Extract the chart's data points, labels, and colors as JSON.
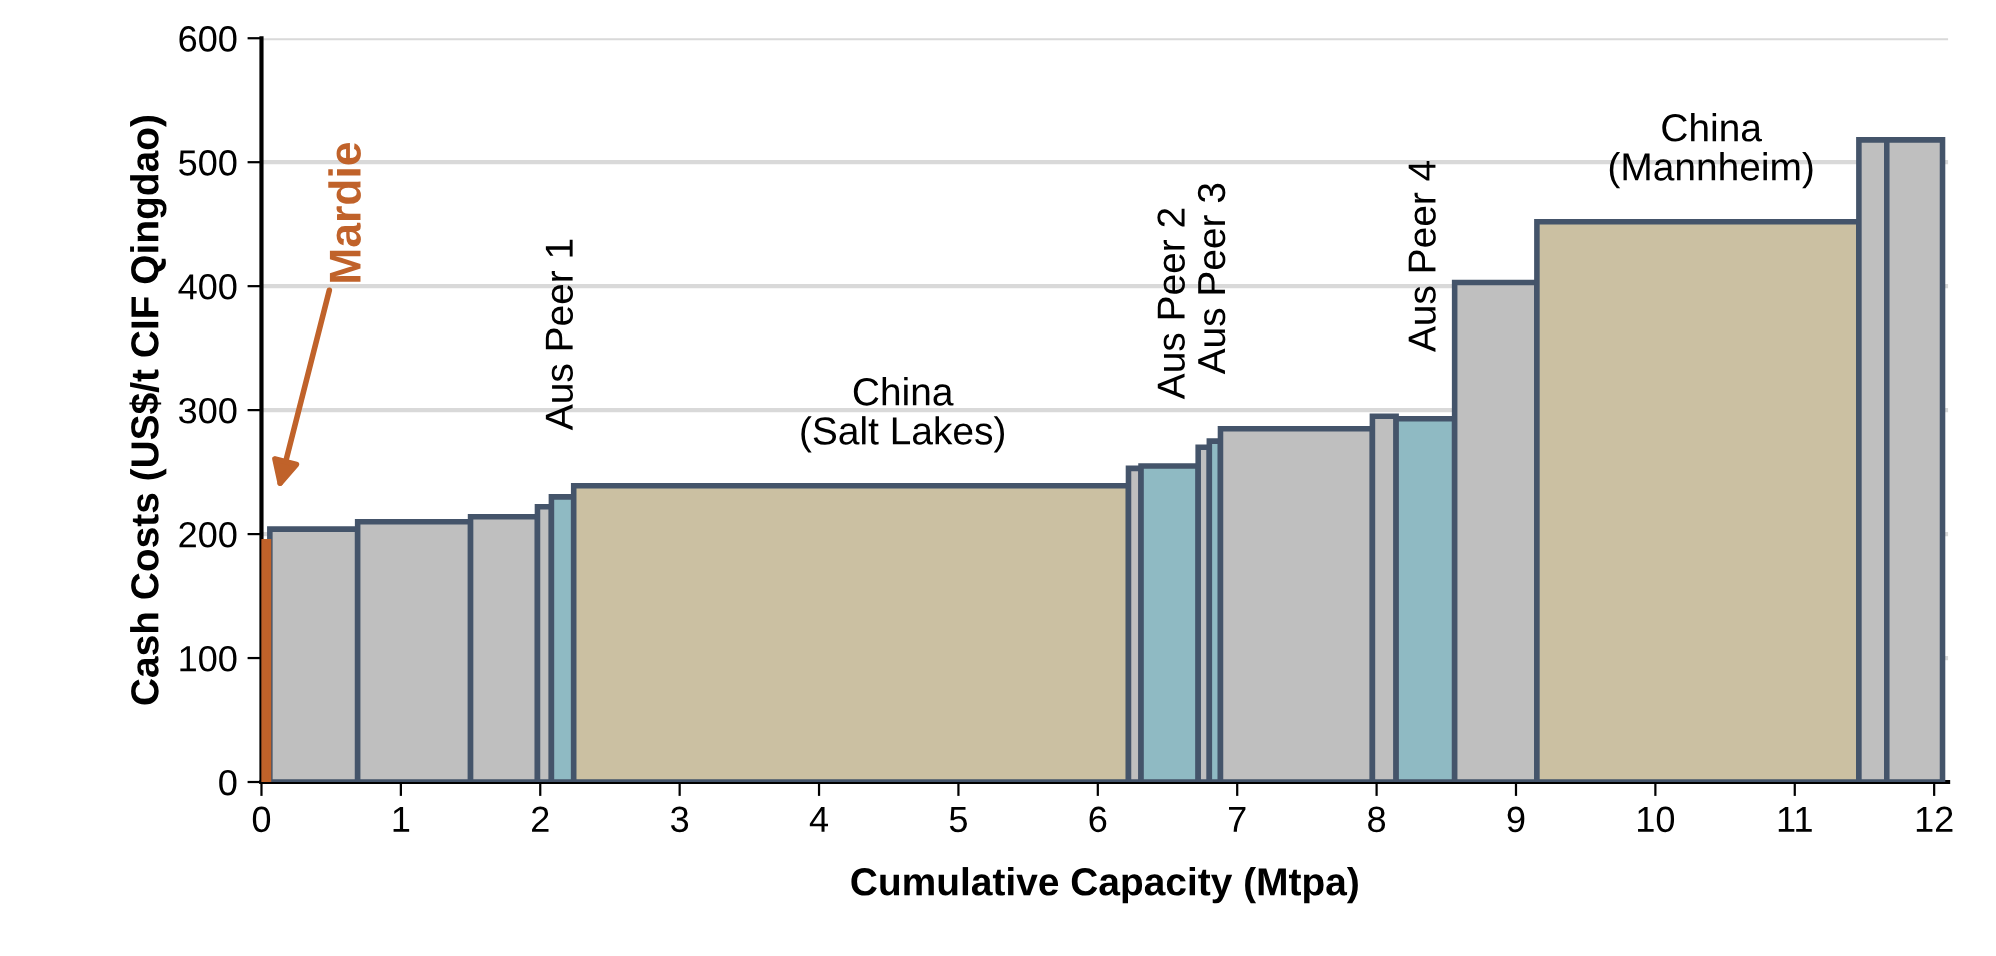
{
  "chart_data": {
    "type": "histogram",
    "xlabel": "Cumulative Capacity (Mtpa)",
    "ylabel": "Cash Costs (US$/t CIF Qingdao)",
    "bins": [
      0,
      0.06,
      0.69,
      1.5,
      1.98,
      2.08,
      2.24,
      6.22,
      6.31,
      6.72,
      6.8,
      6.88,
      7.97,
      8.14,
      8.56,
      9.15,
      11.46,
      11.66,
      12.06
    ],
    "values": [
      195,
      204,
      210,
      214,
      222,
      230,
      239,
      253,
      255,
      270,
      275,
      285,
      295,
      293,
      403,
      452,
      518,
      518
    ],
    "colors": [
      "#c0622a",
      "#bfbfbf",
      "#bfbfbf",
      "#bfbfbf",
      "#bfbfbf",
      "#8fbac3",
      "#cbc0a2",
      "#bfbfbf",
      "#8fbac3",
      "#bfbfbf",
      "#8fbac3",
      "#bfbfbf",
      "#bfbfbf",
      "#8fbac3",
      "#bfbfbf",
      "#cbc0a2",
      "#bfbfbf",
      "#bfbfbf"
    ],
    "xlim": [
      0,
      12.1
    ],
    "ylim": [
      0,
      600
    ],
    "xticks": [
      0,
      1,
      2,
      3,
      4,
      5,
      6,
      7,
      8,
      9,
      10,
      11,
      12
    ],
    "yticks": [
      0,
      100,
      200,
      300,
      400,
      500,
      600
    ],
    "grid": "y",
    "annotations": [
      "Mardie",
      {
        "text": "Aus Peer 1",
        "x": 2.16,
        "y": 230
      },
      {
        "text": "China\n(Salt Lakes)",
        "x": 4.6,
        "y": 239
      },
      {
        "text": "Aus Peer 2",
        "x": 6.55,
        "y": 255
      },
      {
        "text": "Aus Peer 3",
        "x": 6.84,
        "y": 275
      },
      {
        "text": "Aus Peer 4",
        "x": 8.35,
        "y": 293
      },
      {
        "text": "China\n(Mannheim)",
        "x": 10.4,
        "y": 452
      }
    ]
  }
}
